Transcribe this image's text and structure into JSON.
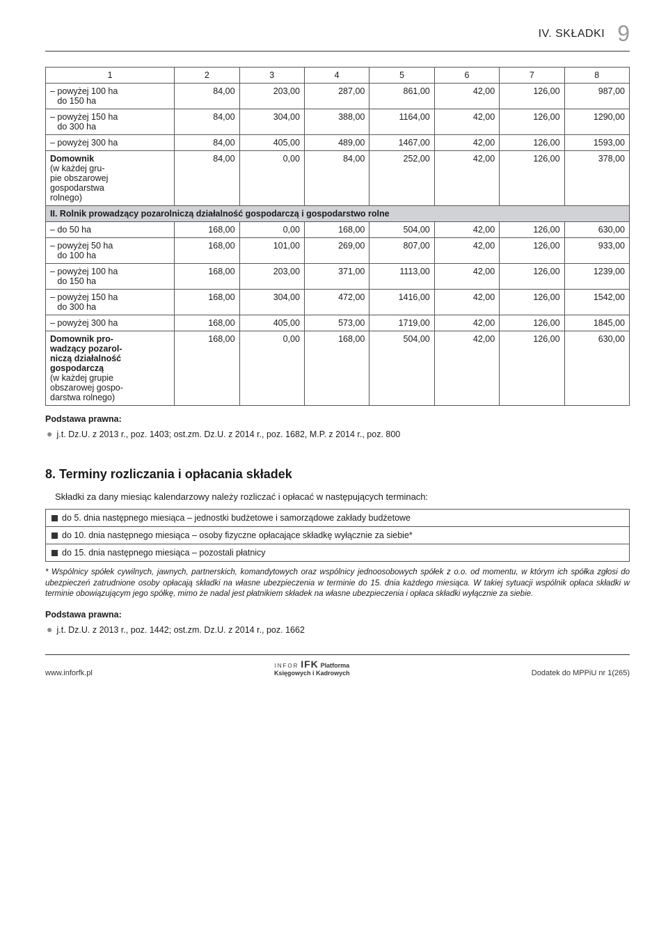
{
  "header": {
    "section": "IV. SKŁADKI",
    "page": "9"
  },
  "table1": {
    "head": [
      "1",
      "2",
      "3",
      "4",
      "5",
      "6",
      "7",
      "8"
    ],
    "rows": [
      {
        "label": "– powyżej 100 ha\n    do 150 ha",
        "c": [
          "84,00",
          "203,00",
          "287,00",
          "861,00",
          "42,00",
          "126,00",
          "987,00"
        ]
      },
      {
        "label": "– powyżej 150 ha\n    do 300 ha",
        "c": [
          "84,00",
          "304,00",
          "388,00",
          "1164,00",
          "42,00",
          "126,00",
          "1290,00"
        ]
      },
      {
        "label": "– powyżej 300 ha",
        "c": [
          "84,00",
          "405,00",
          "489,00",
          "1467,00",
          "42,00",
          "126,00",
          "1593,00"
        ]
      },
      {
        "label_html": "<span class='bold'>Domownik</span>\n(w każdej gru-\npie obszarowej\ngospodarstwa\nrolnego)",
        "c": [
          "84,00",
          "0,00",
          "84,00",
          "252,00",
          "42,00",
          "126,00",
          "378,00"
        ]
      }
    ],
    "subhead": "II. Rolnik prowadzący pozarolniczą działalność gospodarczą i gospodarstwo rolne",
    "rows2": [
      {
        "label": "– do 50 ha",
        "c": [
          "168,00",
          "0,00",
          "168,00",
          "504,00",
          "42,00",
          "126,00",
          "630,00"
        ]
      },
      {
        "label": "– powyżej 50 ha\n    do 100 ha",
        "c": [
          "168,00",
          "101,00",
          "269,00",
          "807,00",
          "42,00",
          "126,00",
          "933,00"
        ]
      },
      {
        "label": "– powyżej 100 ha\n    do 150 ha",
        "c": [
          "168,00",
          "203,00",
          "371,00",
          "1113,00",
          "42,00",
          "126,00",
          "1239,00"
        ]
      },
      {
        "label": "– powyżej 150 ha\n    do 300 ha",
        "c": [
          "168,00",
          "304,00",
          "472,00",
          "1416,00",
          "42,00",
          "126,00",
          "1542,00"
        ]
      },
      {
        "label": "– powyżej 300 ha",
        "c": [
          "168,00",
          "405,00",
          "573,00",
          "1719,00",
          "42,00",
          "126,00",
          "1845,00"
        ]
      },
      {
        "label_html": "<span class='bold'>Domownik pro-\nwadzący pozarol-\nniczą działalność\ngospodarczą</span>\n(w każdej grupie\nobszarowej gospo-\ndarstwa rolnego)",
        "c": [
          "168,00",
          "0,00",
          "168,00",
          "504,00",
          "42,00",
          "126,00",
          "630,00"
        ]
      }
    ]
  },
  "basis1": {
    "title": "Podstawa prawna:",
    "line": "j.t. Dz.U. z 2013 r., poz. 1403; ost.zm. Dz.U. z 2014 r., poz. 1682, M.P. z 2014 r., poz. 800"
  },
  "section8": {
    "title": "8. Terminy rozliczania i opłacania składek",
    "intro": "Składki za dany miesiąc kalendarzowy należy rozliczać i opłacać w następujących terminach:",
    "items": [
      "do 5. dnia następnego miesiąca – jednostki budżetowe i samorządowe zakłady budżetowe",
      "do 10. dnia następnego miesiąca – osoby fizyczne opłacające składkę wyłącznie za siebie*",
      "do 15. dnia następnego miesiąca – pozostali płatnicy"
    ],
    "note": "* Wspólnicy spółek cywilnych, jawnych, partnerskich, komandytowych oraz wspólnicy jednoosobowych spółek z o.o. od momentu, w którym ich spółka zgłosi do ubezpieczeń zatrudnione osoby opłacają składki na własne ubezpieczenia w terminie do 15. dnia każdego miesiąca. W takiej sytuacji wspólnik opłaca składki w terminie obowiązującym jego spółkę, mimo że nadal jest płatnikiem składek na własne ubezpieczenia i opłaca składki wyłącznie za siebie."
  },
  "basis2": {
    "title": "Podstawa prawna:",
    "line": "j.t. Dz.U. z 2013 r., poz. 1442; ost.zm. Dz.U. z 2014 r., poz. 1662"
  },
  "footer": {
    "left": "www.inforfk.pl",
    "brand_small": "INFOR",
    "brand_big": "IFK",
    "brand_sub1": "Platforma",
    "brand_sub2": "Księgowych i Kadrowych",
    "right": "Dodatek do MPPiU nr 1(265)"
  },
  "colors": {
    "text": "#1a1a1a",
    "border": "#555555",
    "subhead_bg": "#d0d2d6",
    "page_num": "#999999",
    "bullet": "#888888"
  }
}
